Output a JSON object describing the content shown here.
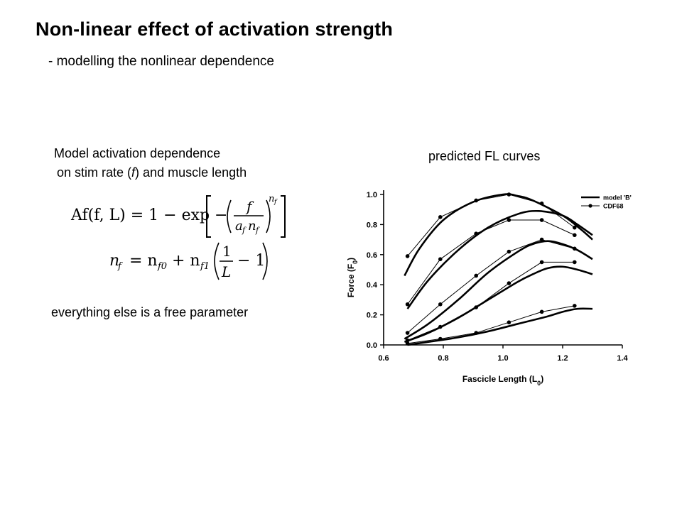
{
  "slide": {
    "title": "Non-linear effect of activation strength",
    "subtitle": "- modelling the nonlinear dependence",
    "model_heading_line1": "Model activation dependence",
    "model_heading_line2_a": "on stim rate (",
    "model_heading_line2_f": "f",
    "model_heading_line2_b": ") and muscle length",
    "free_parameter_note": "everything else is a free parameter",
    "fl_curves_label": "predicted FL curves"
  },
  "equations": {
    "eq1_lhs": "Af(f, L) = 1 − exp",
    "eq1_frac_num": "f",
    "eq1_frac_den": "a",
    "eq1_frac_den_sub": "f",
    "eq1_frac_den_n": "n",
    "eq1_frac_den_n_sub": "f",
    "eq1_exp": "n",
    "eq1_exp_sub": "f",
    "eq2_lhs": "n",
    "eq2_lhs_sub": "f",
    "eq2_rhs_a": "= n",
    "eq2_rhs_a_sub": "f0",
    "eq2_rhs_b": "+ n",
    "eq2_rhs_b_sub": "f1",
    "eq2_frac_num": "1",
    "eq2_frac_den": "L",
    "eq2_tail": "− 1"
  },
  "chart_data": {
    "type": "line",
    "xlabel": "Fascicle Length (L",
    "xlabel_sub": "0",
    "xlabel_close": ")",
    "ylabel": "Force (F",
    "ylabel_sub": "0",
    "ylabel_close": ")",
    "xlim": [
      0.6,
      1.4
    ],
    "ylim": [
      0.0,
      1.0
    ],
    "xticks": [
      "0.6",
      "0.8",
      "1.0",
      "1.2",
      "1.4"
    ],
    "xtick_values": [
      0.6,
      0.8,
      1.0,
      1.2,
      1.4
    ],
    "yticks": [
      "0.0",
      "0.2",
      "0.4",
      "0.6",
      "0.8",
      "1.0"
    ],
    "ytick_values": [
      0.0,
      0.2,
      0.4,
      0.6,
      0.8,
      1.0
    ],
    "legend_position": "top-right",
    "legend": [
      {
        "label": "model 'B'",
        "style": "thick-line"
      },
      {
        "label": "CDF68",
        "style": "thin-line-dots"
      }
    ],
    "series": [
      {
        "name": "model 'B'",
        "group": 1,
        "x": [
          0.67,
          0.72,
          0.8,
          0.9,
          1.0,
          1.05,
          1.1,
          1.2,
          1.26,
          1.3
        ],
        "y": [
          0.46,
          0.64,
          0.83,
          0.95,
          1.0,
          0.99,
          0.96,
          0.86,
          0.77,
          0.7
        ]
      },
      {
        "name": "CDF68",
        "group": 1,
        "x": [
          0.68,
          0.79,
          0.91,
          1.02,
          1.13,
          1.24
        ],
        "y": [
          0.59,
          0.85,
          0.96,
          1.0,
          0.94,
          0.78
        ]
      },
      {
        "name": "model 'B'",
        "group": 2,
        "x": [
          0.68,
          0.75,
          0.85,
          0.95,
          1.05,
          1.12,
          1.2,
          1.25,
          1.3
        ],
        "y": [
          0.24,
          0.43,
          0.63,
          0.78,
          0.87,
          0.89,
          0.86,
          0.8,
          0.73
        ]
      },
      {
        "name": "CDF68",
        "group": 2,
        "x": [
          0.68,
          0.79,
          0.91,
          1.02,
          1.13,
          1.24
        ],
        "y": [
          0.27,
          0.57,
          0.74,
          0.83,
          0.83,
          0.73
        ]
      },
      {
        "name": "model 'B'",
        "group": 3,
        "x": [
          0.67,
          0.75,
          0.85,
          0.95,
          1.05,
          1.1,
          1.15,
          1.2,
          1.25,
          1.3
        ],
        "y": [
          0.04,
          0.14,
          0.3,
          0.48,
          0.62,
          0.67,
          0.69,
          0.67,
          0.63,
          0.57
        ]
      },
      {
        "name": "CDF68",
        "group": 3,
        "x": [
          0.68,
          0.79,
          0.91,
          1.02,
          1.13,
          1.24
        ],
        "y": [
          0.08,
          0.27,
          0.46,
          0.62,
          0.7,
          0.64
        ]
      },
      {
        "name": "model 'B'",
        "group": 4,
        "x": [
          0.67,
          0.75,
          0.85,
          0.95,
          1.05,
          1.1,
          1.15,
          1.2,
          1.25,
          1.3
        ],
        "y": [
          0.02,
          0.08,
          0.18,
          0.3,
          0.42,
          0.47,
          0.51,
          0.52,
          0.5,
          0.47
        ]
      },
      {
        "name": "CDF68",
        "group": 4,
        "x": [
          0.68,
          0.79,
          0.91,
          1.02,
          1.13,
          1.24
        ],
        "y": [
          0.03,
          0.12,
          0.25,
          0.41,
          0.55,
          0.55
        ]
      },
      {
        "name": "model 'B'",
        "group": 5,
        "x": [
          0.68,
          0.75,
          0.85,
          0.95,
          1.05,
          1.15,
          1.2,
          1.25,
          1.3
        ],
        "y": [
          0.0,
          0.02,
          0.05,
          0.09,
          0.14,
          0.19,
          0.22,
          0.24,
          0.24
        ]
      },
      {
        "name": "CDF68",
        "group": 5,
        "x": [
          0.68,
          0.79,
          0.91,
          1.02,
          1.13,
          1.24
        ],
        "y": [
          0.01,
          0.04,
          0.08,
          0.15,
          0.22,
          0.26
        ]
      }
    ]
  }
}
